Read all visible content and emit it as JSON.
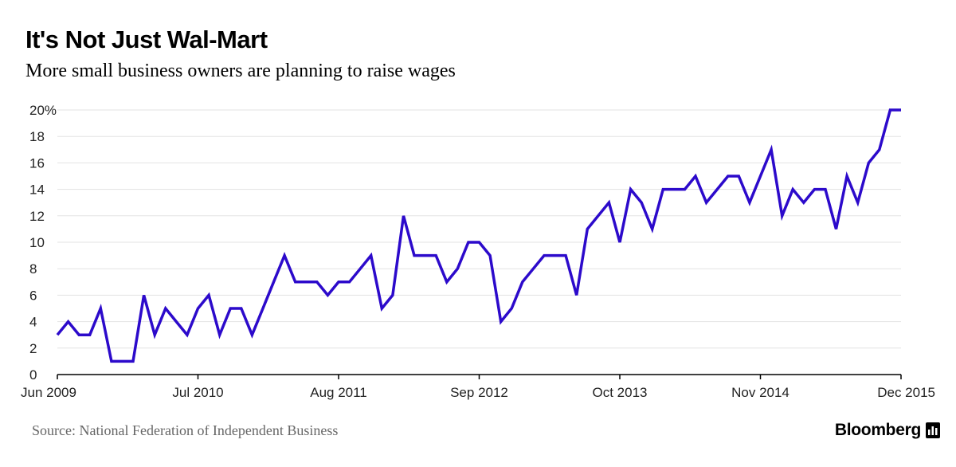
{
  "title": "It's Not Just Wal-Mart",
  "subtitle": "More small business owners are planning to raise wages",
  "source": "Source: National Federation of Independent Business",
  "brand": "Bloomberg",
  "colors": {
    "line": "#2C0ACB",
    "grid": "#e3e3e3",
    "axis": "#000000"
  },
  "chart_data": {
    "type": "line",
    "title": "It's Not Just Wal-Mart",
    "subtitle": "More small business owners are planning to raise wages",
    "xlabel": "",
    "ylabel": "",
    "ylim": [
      0,
      20
    ],
    "grid": true,
    "y_ticks": [
      "0",
      "2",
      "4",
      "6",
      "8",
      "10",
      "12",
      "14",
      "16",
      "18",
      "20%"
    ],
    "x_ticks": [
      "Jun 2009",
      "Jul 2010",
      "Aug 2011",
      "Sep 2012",
      "Oct 2013",
      "Nov 2014",
      "Dec 2015"
    ],
    "x_start": "Jun 2009",
    "x_end": "Dec 2015",
    "series": [
      {
        "values": [
          3,
          4,
          3,
          3,
          5,
          1,
          1,
          1,
          6,
          3,
          5,
          4,
          3,
          5,
          6,
          3,
          5,
          5,
          3,
          5,
          7,
          9,
          7,
          7,
          7,
          6,
          7,
          7,
          8,
          9,
          5,
          6,
          12,
          9,
          9,
          9,
          7,
          8,
          10,
          10,
          9,
          4,
          5,
          7,
          8,
          9,
          9,
          9,
          6,
          11,
          12,
          13,
          10,
          14,
          13,
          11,
          14,
          14,
          14,
          15,
          13,
          14,
          15,
          15,
          13,
          15,
          17,
          12,
          14,
          13,
          14,
          14,
          11,
          15,
          13,
          16,
          17,
          20,
          20
        ]
      }
    ]
  }
}
